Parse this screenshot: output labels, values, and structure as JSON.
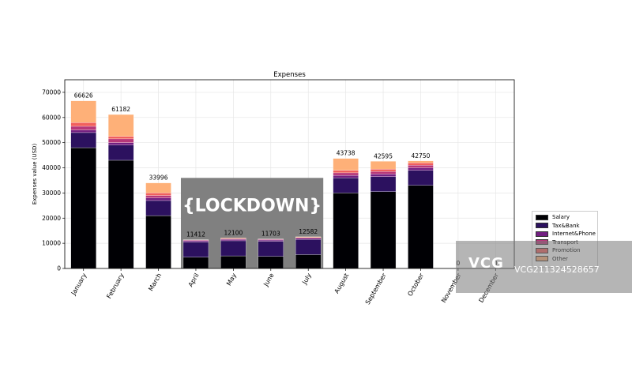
{
  "chart_data": {
    "type": "bar",
    "stacked": true,
    "title": "Expenses",
    "xlabel": "",
    "ylabel": "Expenses value (USD)",
    "ylim": [
      0,
      75000
    ],
    "yticks": [
      0,
      10000,
      20000,
      30000,
      40000,
      50000,
      60000,
      70000
    ],
    "grid": true,
    "categories": [
      "January",
      "February",
      "March",
      "April",
      "May",
      "June",
      "July",
      "August",
      "September",
      "October",
      "November",
      "December"
    ],
    "totals": [
      66626,
      61182,
      33996,
      11412,
      12100,
      11703,
      12582,
      43738,
      42595,
      42750,
      0,
      0
    ],
    "series": [
      {
        "name": "Salary",
        "color": "#000004",
        "values": [
          48000,
          43000,
          21000,
          4500,
          5000,
          4800,
          5500,
          30000,
          30500,
          33000,
          0,
          0
        ]
      },
      {
        "name": "Tax&Bank",
        "color": "#2c115f",
        "values": [
          6000,
          6000,
          6000,
          6000,
          6000,
          6000,
          6000,
          6000,
          6000,
          6000,
          0,
          0
        ]
      },
      {
        "name": "Internet&Phone",
        "color": "#721f81",
        "values": [
          1000,
          1000,
          1000,
          500,
          500,
          500,
          500,
          1000,
          1000,
          1000,
          0,
          0
        ]
      },
      {
        "name": "Transport",
        "color": "#b73779",
        "values": [
          1500,
          1500,
          1000,
          300,
          300,
          300,
          300,
          1000,
          1000,
          1000,
          0,
          0
        ]
      },
      {
        "name": "Promotion",
        "color": "#f1605d",
        "values": [
          1500,
          1000,
          1000,
          0,
          0,
          0,
          0,
          1000,
          1000,
          1000,
          0,
          0
        ]
      },
      {
        "name": "Other",
        "color": "#feb078",
        "values": [
          8626,
          8682,
          3996,
          112,
          300,
          103,
          282,
          4738,
          3095,
          750,
          0,
          0
        ]
      }
    ],
    "annotation": {
      "text": "{LOCKDOWN}",
      "from": "April",
      "to": "July",
      "height": 36000
    },
    "legend_position": "right"
  },
  "watermark": {
    "logo": "VCG",
    "text": "VCG211324528657"
  }
}
